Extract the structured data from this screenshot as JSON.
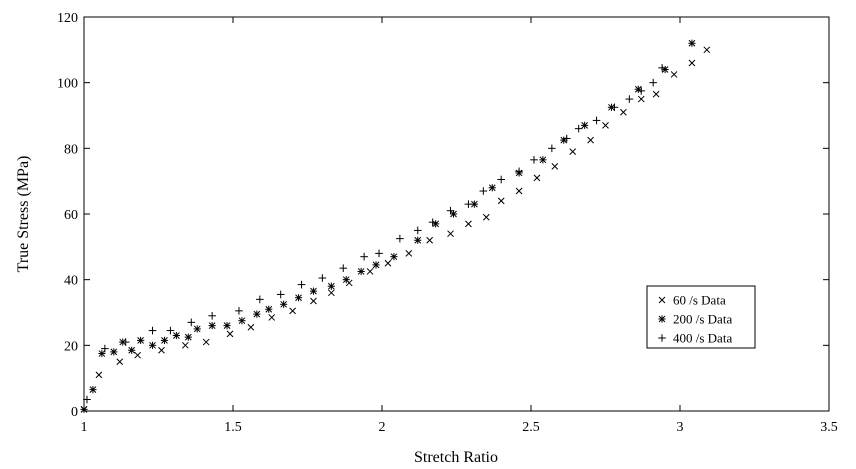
{
  "chart_data": {
    "type": "scatter",
    "title": "",
    "xlabel": "Stretch Ratio",
    "ylabel": "True Stress (MPa)",
    "xlim": [
      1,
      3.5
    ],
    "ylim": [
      0,
      120
    ],
    "xticks": [
      1,
      1.5,
      2,
      2.5,
      3,
      3.5
    ],
    "xtick_labels": [
      "1",
      "1.5",
      "2",
      "2.5",
      "3",
      "3.5"
    ],
    "yticks": [
      0,
      20,
      40,
      60,
      80,
      100,
      120
    ],
    "ytick_labels": [
      "0",
      "20",
      "40",
      "60",
      "80",
      "100",
      "120"
    ],
    "grid": false,
    "legend_position": "right-middle",
    "series": [
      {
        "name": "60 /s Data",
        "marker": "x",
        "color": "#000000",
        "points": [
          [
            1.0,
            0.5
          ],
          [
            1.05,
            11
          ],
          [
            1.12,
            15
          ],
          [
            1.18,
            17
          ],
          [
            1.26,
            18.5
          ],
          [
            1.34,
            20
          ],
          [
            1.41,
            21
          ],
          [
            1.49,
            23.5
          ],
          [
            1.56,
            25.5
          ],
          [
            1.63,
            28.5
          ],
          [
            1.7,
            30.5
          ],
          [
            1.77,
            33.5
          ],
          [
            1.83,
            36
          ],
          [
            1.89,
            39
          ],
          [
            1.96,
            42.5
          ],
          [
            2.02,
            45
          ],
          [
            2.09,
            48
          ],
          [
            2.16,
            52
          ],
          [
            2.23,
            54
          ],
          [
            2.29,
            57
          ],
          [
            2.35,
            59
          ],
          [
            2.4,
            64
          ],
          [
            2.46,
            67
          ],
          [
            2.52,
            71
          ],
          [
            2.58,
            74.5
          ],
          [
            2.64,
            79
          ],
          [
            2.7,
            82.5
          ],
          [
            2.75,
            87
          ],
          [
            2.81,
            91
          ],
          [
            2.87,
            95
          ],
          [
            2.92,
            96.5
          ],
          [
            2.98,
            102.5
          ],
          [
            3.04,
            106
          ],
          [
            3.09,
            110
          ]
        ]
      },
      {
        "name": "200 /s Data",
        "marker": "asterisk",
        "color": "#000000",
        "points": [
          [
            1.0,
            0.5
          ],
          [
            1.03,
            6.5
          ],
          [
            1.06,
            17.5
          ],
          [
            1.1,
            18
          ],
          [
            1.13,
            21
          ],
          [
            1.16,
            18.5
          ],
          [
            1.19,
            21.5
          ],
          [
            1.23,
            20
          ],
          [
            1.27,
            21.5
          ],
          [
            1.31,
            23
          ],
          [
            1.35,
            22.5
          ],
          [
            1.38,
            25
          ],
          [
            1.43,
            26
          ],
          [
            1.48,
            26
          ],
          [
            1.53,
            27.5
          ],
          [
            1.58,
            29.5
          ],
          [
            1.62,
            31
          ],
          [
            1.67,
            32.5
          ],
          [
            1.72,
            34.5
          ],
          [
            1.77,
            36.5
          ],
          [
            1.83,
            38
          ],
          [
            1.88,
            40
          ],
          [
            1.93,
            42.5
          ],
          [
            1.98,
            44.5
          ],
          [
            2.04,
            47
          ],
          [
            2.12,
            52
          ],
          [
            2.18,
            57
          ],
          [
            2.24,
            60
          ],
          [
            2.31,
            63
          ],
          [
            2.37,
            68
          ],
          [
            2.46,
            72.5
          ],
          [
            2.54,
            76.5
          ],
          [
            2.61,
            82.5
          ],
          [
            2.68,
            87
          ],
          [
            2.77,
            92.5
          ],
          [
            2.86,
            98
          ],
          [
            2.95,
            104
          ],
          [
            3.04,
            112
          ]
        ]
      },
      {
        "name": "400 /s Data",
        "marker": "plus",
        "color": "#000000",
        "points": [
          [
            1.01,
            3.5
          ],
          [
            1.07,
            19
          ],
          [
            1.14,
            21
          ],
          [
            1.23,
            24.5
          ],
          [
            1.29,
            24.5
          ],
          [
            1.36,
            27
          ],
          [
            1.43,
            29
          ],
          [
            1.52,
            30.5
          ],
          [
            1.59,
            34
          ],
          [
            1.66,
            35.5
          ],
          [
            1.73,
            38.5
          ],
          [
            1.8,
            40.5
          ],
          [
            1.87,
            43.5
          ],
          [
            1.94,
            47
          ],
          [
            1.99,
            48
          ],
          [
            2.06,
            52.5
          ],
          [
            2.12,
            55
          ],
          [
            2.17,
            57.5
          ],
          [
            2.23,
            61
          ],
          [
            2.29,
            63
          ],
          [
            2.34,
            67
          ],
          [
            2.4,
            70.5
          ],
          [
            2.46,
            73
          ],
          [
            2.51,
            76.5
          ],
          [
            2.57,
            80
          ],
          [
            2.62,
            83
          ],
          [
            2.66,
            86
          ],
          [
            2.72,
            88.5
          ],
          [
            2.78,
            92.5
          ],
          [
            2.83,
            95
          ],
          [
            2.87,
            97.5
          ],
          [
            2.91,
            100
          ],
          [
            2.94,
            104.5
          ]
        ]
      }
    ]
  }
}
